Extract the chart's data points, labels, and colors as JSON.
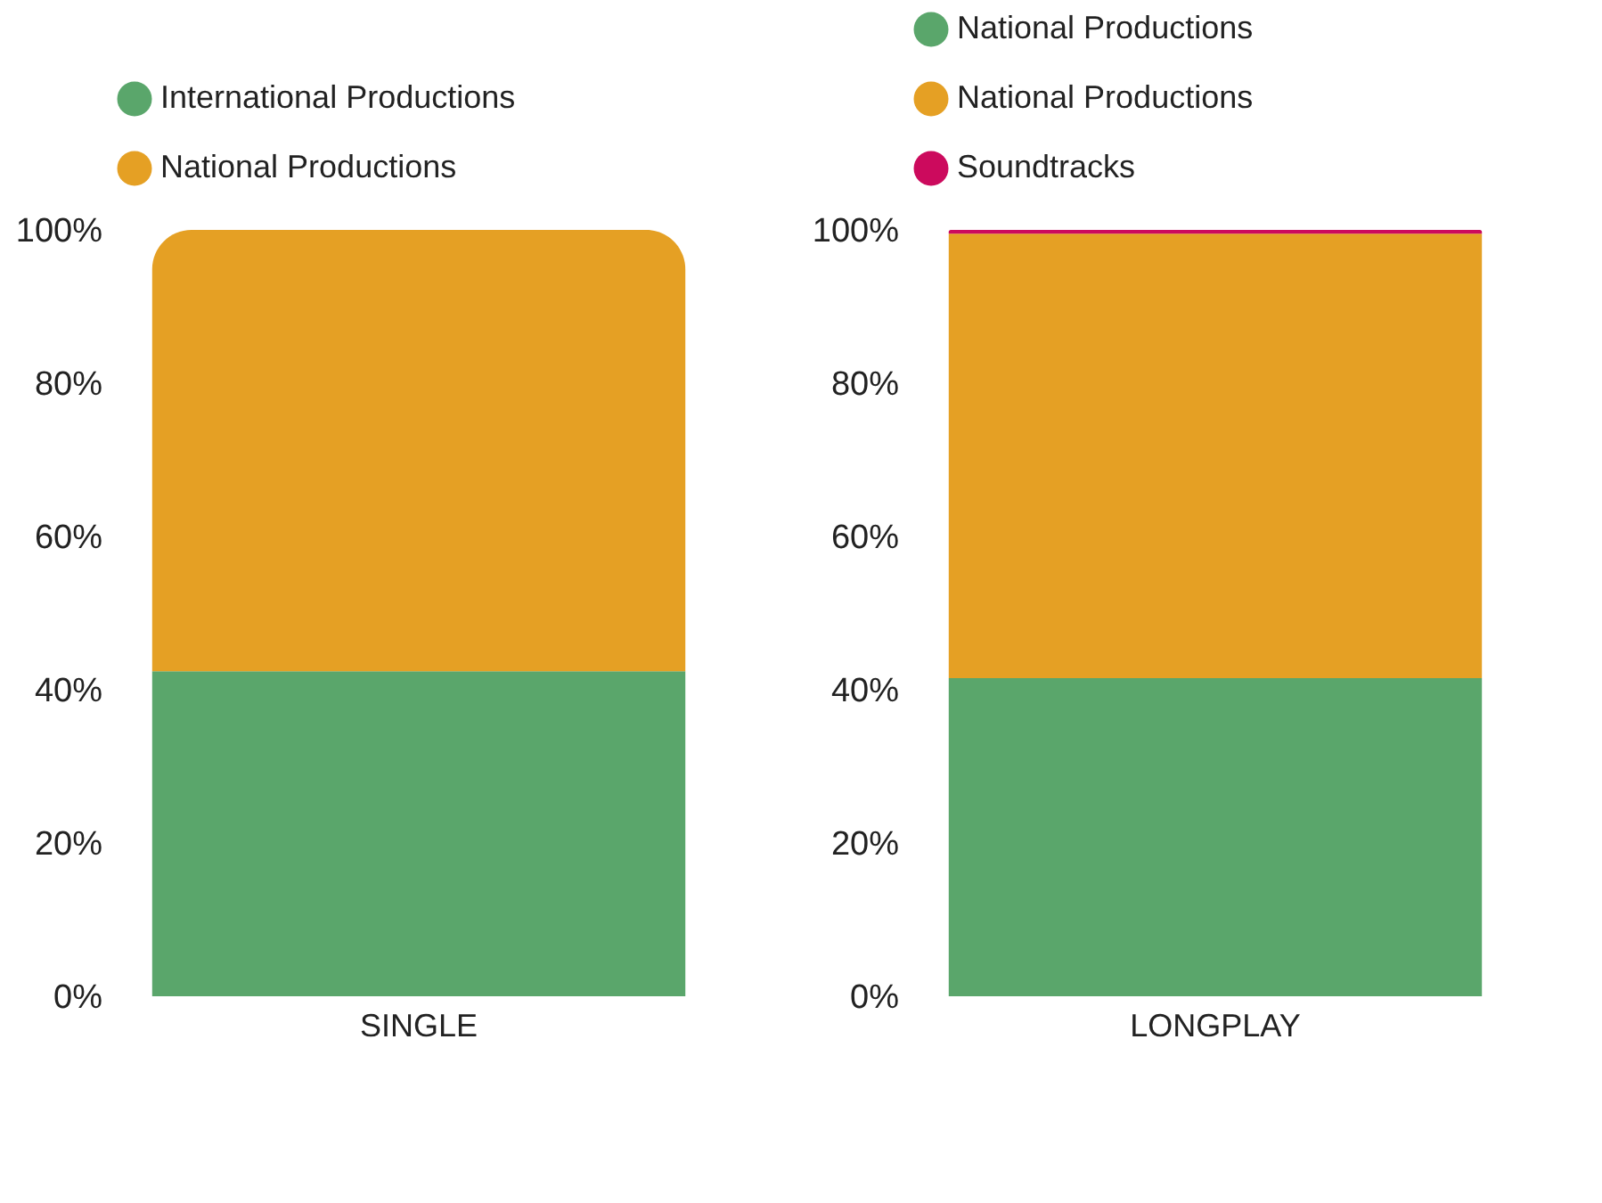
{
  "chart_data": [
    {
      "type": "bar",
      "stacked": true,
      "categories": [
        "SINGLE"
      ],
      "series": [
        {
          "name": "International Productions",
          "color": "#5aa66b",
          "values": [
            42.4
          ]
        },
        {
          "name": "National Productions",
          "color": "#e5a024",
          "values": [
            57.6
          ]
        }
      ],
      "ylim": [
        0,
        100
      ],
      "yticks": [
        {
          "value": 0,
          "label": "0%"
        },
        {
          "value": 20,
          "label": "20%"
        },
        {
          "value": 40,
          "label": "40%"
        },
        {
          "value": 60,
          "label": "60%"
        },
        {
          "value": 80,
          "label": "80%"
        },
        {
          "value": 100,
          "label": "100%"
        }
      ],
      "grid": false,
      "legend": "top left"
    },
    {
      "type": "bar",
      "stacked": true,
      "categories": [
        "LONGPLAY"
      ],
      "series": [
        {
          "name": "National Productions",
          "color": "#5aa66b",
          "values": [
            41.5
          ]
        },
        {
          "name": "National Productions",
          "color": "#e5a024",
          "values": [
            58
          ]
        },
        {
          "name": "Soundtracks",
          "color": "#cc0a5d",
          "values": [
            0.5
          ]
        }
      ],
      "ylim": [
        0,
        100
      ],
      "yticks": [
        {
          "value": 0,
          "label": "0%"
        },
        {
          "value": 20,
          "label": "20%"
        },
        {
          "value": 40,
          "label": "40%"
        },
        {
          "value": 60,
          "label": "60%"
        },
        {
          "value": 80,
          "label": "80%"
        },
        {
          "value": 100,
          "label": "100%"
        }
      ],
      "grid": false,
      "legend": "top left"
    }
  ]
}
